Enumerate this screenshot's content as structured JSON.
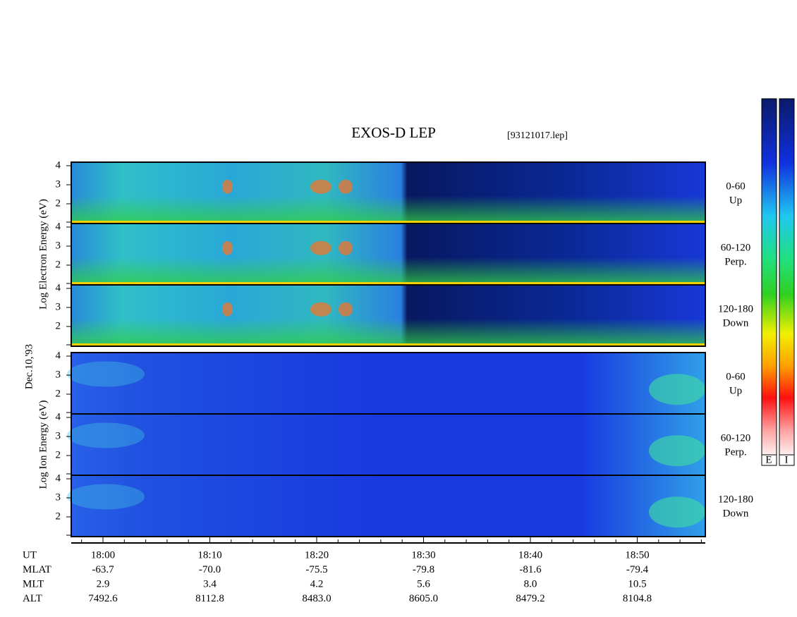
{
  "title": "EXOS-D LEP",
  "file": "[93121017.lep]",
  "date_label": "Dec.10,'93",
  "groups": [
    {
      "label": "Log Electron Energy (eV)",
      "yticks": [
        "4",
        "3",
        "2"
      ],
      "panels": [
        {
          "range": "0-60",
          "dir": "Up"
        },
        {
          "range": "60-120",
          "dir": "Perp."
        },
        {
          "range": "120-180",
          "dir": "Down"
        }
      ]
    },
    {
      "label": "Log Ion Energy (eV)",
      "yticks": [
        "4",
        "3",
        "2"
      ],
      "panels": [
        {
          "range": "0-60",
          "dir": "Up"
        },
        {
          "range": "60-120",
          "dir": "Perp."
        },
        {
          "range": "120-180",
          "dir": "Down"
        }
      ]
    }
  ],
  "orbit": [
    {
      "name": "UT",
      "values": [
        "18:00",
        "18:10",
        "18:20",
        "18:30",
        "18:40",
        "18:50"
      ]
    },
    {
      "name": "MLAT",
      "values": [
        "-63.7",
        "-70.0",
        "-75.5",
        "-79.8",
        "-81.6",
        "-79.4"
      ]
    },
    {
      "name": "MLT",
      "values": [
        "2.9",
        "3.4",
        "4.2",
        "5.6",
        "8.0",
        "10.5"
      ]
    },
    {
      "name": "ALT",
      "values": [
        "7492.6",
        "8112.8",
        "8483.0",
        "8605.0",
        "8479.2",
        "8104.8"
      ]
    }
  ],
  "colorbars": [
    "E",
    "I"
  ]
}
